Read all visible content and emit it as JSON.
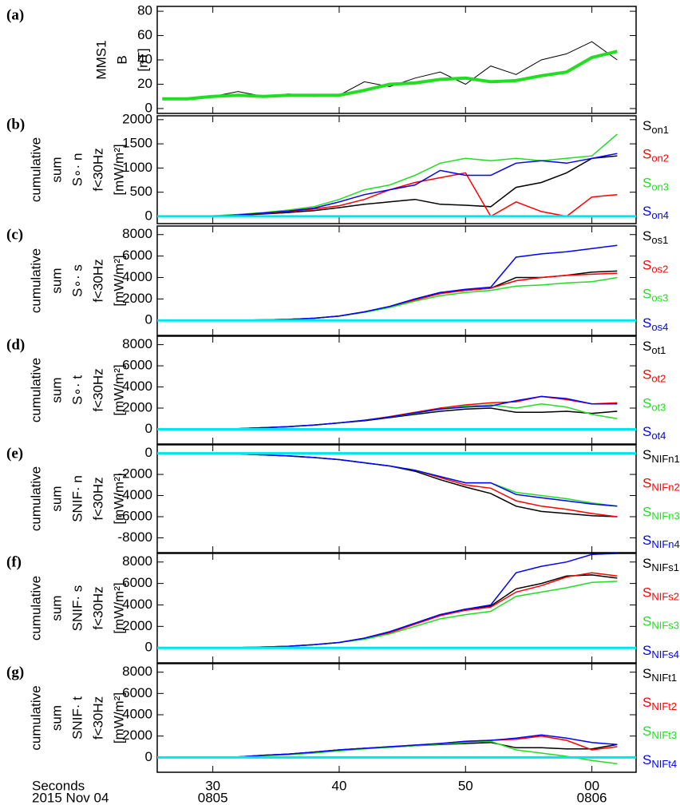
{
  "chart_data": [
    {
      "type": "line",
      "panel_label": "(a)",
      "ylabel_lines": [
        "MMS1",
        "B",
        "[nT]"
      ],
      "x": [
        26,
        28,
        30,
        32,
        34,
        36,
        38,
        40,
        42,
        44,
        46,
        48,
        50,
        52,
        54,
        56,
        58,
        60,
        62
      ],
      "xlim": [
        25.6,
        63.5
      ],
      "ylim": [
        -4,
        84
      ],
      "yticks": [
        0,
        20,
        40,
        60,
        80
      ],
      "series": [
        {
          "color": "#000000",
          "width": 1,
          "values": [
            8,
            8,
            10,
            14,
            10,
            12,
            10,
            11,
            22,
            18,
            25,
            30,
            20,
            35,
            28,
            40,
            45,
            55,
            40
          ]
        },
        {
          "color": "#22dd22",
          "width": 4,
          "values": [
            8,
            8,
            10,
            11,
            10,
            11,
            11,
            11,
            15,
            20,
            21,
            24,
            25,
            22,
            23,
            27,
            30,
            42,
            47
          ]
        }
      ]
    },
    {
      "type": "line",
      "panel_label": "(b)",
      "ylabel_lines": [
        "cumulative",
        "sum",
        "S∘· n",
        "f<30Hz",
        "[mW/m²]"
      ],
      "x": [
        26,
        28,
        30,
        32,
        34,
        36,
        38,
        40,
        42,
        44,
        46,
        48,
        50,
        52,
        54,
        56,
        58,
        60,
        62
      ],
      "xlim": [
        25.6,
        63.5
      ],
      "ylim": [
        -150,
        2080
      ],
      "yticks": [
        0,
        500,
        1000,
        1500,
        2000
      ],
      "ref_line": {
        "value": 0,
        "color": "#00e5ee"
      },
      "series": [
        {
          "name": "S",
          "sub": "on1",
          "color": "#000000",
          "values": [
            0,
            0,
            5,
            20,
            50,
            80,
            120,
            180,
            250,
            300,
            350,
            250,
            230,
            200,
            600,
            700,
            900,
            1200,
            1250
          ]
        },
        {
          "name": "S",
          "sub": "on2",
          "color": "#ff0000",
          "values": [
            0,
            0,
            10,
            30,
            60,
            100,
            150,
            220,
            350,
            550,
            700,
            800,
            900,
            0,
            300,
            100,
            0,
            400,
            450
          ]
        },
        {
          "name": "S",
          "sub": "on3",
          "color": "#22dd22",
          "values": [
            0,
            0,
            10,
            40,
            80,
            130,
            200,
            350,
            550,
            650,
            850,
            1100,
            1200,
            1150,
            1200,
            1150,
            1200,
            1250,
            1700
          ]
        },
        {
          "name": "S",
          "sub": "on4",
          "color": "#0000ff",
          "values": [
            0,
            0,
            5,
            30,
            70,
            110,
            170,
            300,
            450,
            550,
            650,
            950,
            850,
            850,
            1100,
            1150,
            1100,
            1200,
            1300
          ]
        }
      ]
    },
    {
      "type": "line",
      "panel_label": "(c)",
      "ylabel_lines": [
        "cumulative",
        "sum",
        "S∘· s",
        "f<30Hz",
        "[mW/m²]"
      ],
      "x": [
        26,
        28,
        30,
        32,
        34,
        36,
        38,
        40,
        42,
        44,
        46,
        48,
        50,
        52,
        54,
        56,
        58,
        60,
        62
      ],
      "xlim": [
        25.6,
        63.5
      ],
      "ylim": [
        -1400,
        8800
      ],
      "yticks": [
        0,
        2000,
        4000,
        6000,
        8000
      ],
      "ref_line": {
        "value": 0,
        "color": "#00e5ee"
      },
      "series": [
        {
          "name": "S",
          "sub": "os1",
          "color": "#000000",
          "values": [
            0,
            0,
            0,
            10,
            50,
            100,
            200,
            400,
            800,
            1300,
            2000,
            2600,
            2800,
            3000,
            4000,
            4000,
            4200,
            4500,
            4600
          ]
        },
        {
          "name": "S",
          "sub": "os2",
          "color": "#ff0000",
          "values": [
            0,
            0,
            0,
            10,
            50,
            100,
            200,
            400,
            800,
            1250,
            1900,
            2500,
            2800,
            3000,
            3700,
            4000,
            4200,
            4300,
            4400
          ]
        },
        {
          "name": "S",
          "sub": "os3",
          "color": "#22dd22",
          "values": [
            0,
            0,
            0,
            10,
            50,
            100,
            200,
            400,
            750,
            1200,
            1800,
            2300,
            2600,
            2800,
            3200,
            3300,
            3500,
            3600,
            4000
          ]
        },
        {
          "name": "S",
          "sub": "os4",
          "color": "#0000ff",
          "values": [
            0,
            0,
            0,
            10,
            50,
            100,
            200,
            400,
            800,
            1300,
            2000,
            2600,
            2900,
            3100,
            5900,
            6200,
            6400,
            6700,
            7000
          ]
        }
      ]
    },
    {
      "type": "line",
      "panel_label": "(d)",
      "ylabel_lines": [
        "cumulative",
        "sum",
        "S∘· t",
        "f<30Hz",
        "[mW/m²]"
      ],
      "x": [
        26,
        28,
        30,
        32,
        34,
        36,
        38,
        40,
        42,
        44,
        46,
        48,
        50,
        52,
        54,
        56,
        58,
        60,
        62
      ],
      "xlim": [
        25.6,
        63.5
      ],
      "ylim": [
        -1400,
        8800
      ],
      "yticks": [
        0,
        2000,
        4000,
        6000,
        8000
      ],
      "ref_line": {
        "value": 0,
        "color": "#00e5ee"
      },
      "series": [
        {
          "name": "S",
          "sub": "ot1",
          "color": "#000000",
          "values": [
            0,
            0,
            0,
            50,
            150,
            250,
            400,
            600,
            800,
            1100,
            1400,
            1700,
            1900,
            2000,
            1600,
            1600,
            1700,
            1500,
            1700
          ]
        },
        {
          "name": "S",
          "sub": "ot2",
          "color": "#ff0000",
          "values": [
            0,
            0,
            0,
            50,
            150,
            250,
            400,
            600,
            850,
            1200,
            1600,
            2000,
            2300,
            2500,
            2600,
            3100,
            2800,
            2400,
            2500
          ]
        },
        {
          "name": "S",
          "sub": "ot3",
          "color": "#22dd22",
          "values": [
            0,
            0,
            0,
            50,
            150,
            250,
            400,
            600,
            850,
            1150,
            1500,
            1900,
            2200,
            2300,
            2000,
            2400,
            2100,
            1400,
            1000
          ]
        },
        {
          "name": "S",
          "sub": "ot4",
          "color": "#0000ff",
          "values": [
            0,
            0,
            0,
            50,
            150,
            250,
            400,
            600,
            850,
            1150,
            1550,
            1900,
            2100,
            2200,
            2700,
            3100,
            2900,
            2400,
            2400
          ]
        }
      ]
    },
    {
      "type": "line",
      "panel_label": "(e)",
      "ylabel_lines": [
        "cumulative",
        "sum",
        "SNIF· n",
        "f<30Hz",
        "[mW/m²]"
      ],
      "x": [
        26,
        28,
        30,
        32,
        34,
        36,
        38,
        40,
        42,
        44,
        46,
        48,
        50,
        52,
        54,
        56,
        58,
        60,
        62
      ],
      "xlim": [
        25.6,
        63.5
      ],
      "ylim": [
        -9400,
        800
      ],
      "yticks": [
        0,
        -2000,
        -4000,
        -6000,
        -8000
      ],
      "ref_line": {
        "value": 0,
        "color": "#00e5ee"
      },
      "series": [
        {
          "name": "S",
          "sub": "NIFn1",
          "color": "#000000",
          "values": [
            0,
            0,
            0,
            -50,
            -150,
            -250,
            -400,
            -600,
            -900,
            -1200,
            -1700,
            -2500,
            -3200,
            -3800,
            -5000,
            -5500,
            -5700,
            -5900,
            -6000
          ]
        },
        {
          "name": "S",
          "sub": "NIFn2",
          "color": "#ff0000",
          "values": [
            0,
            0,
            0,
            -50,
            -150,
            -250,
            -400,
            -600,
            -900,
            -1200,
            -1600,
            -2300,
            -3000,
            -3300,
            -4500,
            -5000,
            -5300,
            -5700,
            -6000
          ]
        },
        {
          "name": "S",
          "sub": "NIFn3",
          "color": "#22dd22",
          "values": [
            0,
            0,
            0,
            -50,
            -150,
            -250,
            -400,
            -600,
            -900,
            -1200,
            -1600,
            -2200,
            -2800,
            -2800,
            -3700,
            -4000,
            -4300,
            -4700,
            -5000
          ]
        },
        {
          "name": "S",
          "sub": "NIFn4",
          "color": "#0000ff",
          "values": [
            0,
            0,
            0,
            -50,
            -150,
            -250,
            -400,
            -600,
            -900,
            -1200,
            -1600,
            -2200,
            -2800,
            -2800,
            -3900,
            -4200,
            -4500,
            -4800,
            -5000
          ]
        }
      ]
    },
    {
      "type": "line",
      "panel_label": "(f)",
      "ylabel_lines": [
        "cumulative",
        "sum",
        "SNIF· s",
        "f<30Hz",
        "[mW/m²]"
      ],
      "x": [
        26,
        28,
        30,
        32,
        34,
        36,
        38,
        40,
        42,
        44,
        46,
        48,
        50,
        52,
        54,
        56,
        58,
        60,
        62
      ],
      "xlim": [
        25.6,
        63.5
      ],
      "ylim": [
        -1400,
        8800
      ],
      "yticks": [
        0,
        2000,
        4000,
        6000,
        8000
      ],
      "ref_line": {
        "value": 0,
        "color": "#00e5ee"
      },
      "series": [
        {
          "name": "S",
          "sub": "NIFs1",
          "color": "#000000",
          "values": [
            0,
            0,
            0,
            20,
            80,
            150,
            300,
            500,
            900,
            1500,
            2300,
            3100,
            3600,
            3900,
            5500,
            6000,
            6700,
            6800,
            6500
          ]
        },
        {
          "name": "S",
          "sub": "NIFs2",
          "color": "#ff0000",
          "values": [
            0,
            0,
            0,
            20,
            80,
            150,
            300,
            500,
            900,
            1400,
            2200,
            3000,
            3500,
            3800,
            5200,
            5800,
            6600,
            7000,
            6700
          ]
        },
        {
          "name": "S",
          "sub": "NIFs3",
          "color": "#22dd22",
          "values": [
            0,
            0,
            0,
            20,
            80,
            150,
            300,
            500,
            800,
            1300,
            2000,
            2700,
            3100,
            3400,
            4800,
            5200,
            5600,
            6100,
            6200
          ]
        },
        {
          "name": "S",
          "sub": "NIFs4",
          "color": "#0000ff",
          "values": [
            0,
            0,
            0,
            20,
            80,
            150,
            300,
            500,
            900,
            1500,
            2300,
            3100,
            3600,
            4000,
            7000,
            7600,
            8000,
            8700,
            8800
          ]
        }
      ]
    },
    {
      "type": "line",
      "panel_label": "(g)",
      "ylabel_lines": [
        "cumulative",
        "sum",
        "SNIF· t",
        "f<30Hz",
        "[mW/m²]"
      ],
      "x": [
        26,
        28,
        30,
        32,
        34,
        36,
        38,
        40,
        42,
        44,
        46,
        48,
        50,
        52,
        54,
        56,
        58,
        60,
        62
      ],
      "xlim": [
        25.6,
        63.5
      ],
      "ylim": [
        -1400,
        8800
      ],
      "yticks": [
        0,
        2000,
        4000,
        6000,
        8000
      ],
      "ref_line": {
        "value": 0,
        "color": "#00e5ee"
      },
      "xticks": [
        30,
        40,
        50,
        {
          "value": 60,
          "label": "00"
        }
      ],
      "xticks2": [
        {
          "value": 30,
          "label": "0805"
        },
        {
          "value": 60,
          "label": "0806"
        }
      ],
      "xlabel": "Seconds",
      "xlabel2": "2015 Nov 04",
      "series": [
        {
          "name": "S",
          "sub": "NIFt1",
          "color": "#000000",
          "values": [
            0,
            0,
            0,
            50,
            200,
            300,
            500,
            700,
            850,
            950,
            1100,
            1200,
            1300,
            1400,
            900,
            900,
            800,
            800,
            1200
          ]
        },
        {
          "name": "S",
          "sub": "NIFt2",
          "color": "#ff0000",
          "values": [
            0,
            0,
            0,
            50,
            200,
            300,
            500,
            700,
            850,
            1000,
            1150,
            1300,
            1500,
            1600,
            1700,
            2000,
            1600,
            700,
            1000
          ]
        },
        {
          "name": "S",
          "sub": "NIFt3",
          "color": "#22dd22",
          "values": [
            0,
            0,
            0,
            50,
            150,
            250,
            400,
            600,
            800,
            950,
            1100,
            1250,
            1400,
            1500,
            700,
            400,
            100,
            -300,
            -600
          ]
        },
        {
          "name": "S",
          "sub": "NIFt4",
          "color": "#0000ff",
          "values": [
            0,
            0,
            0,
            50,
            200,
            300,
            500,
            700,
            850,
            1000,
            1150,
            1300,
            1500,
            1600,
            1800,
            2100,
            1800,
            1400,
            1200
          ]
        }
      ]
    }
  ]
}
